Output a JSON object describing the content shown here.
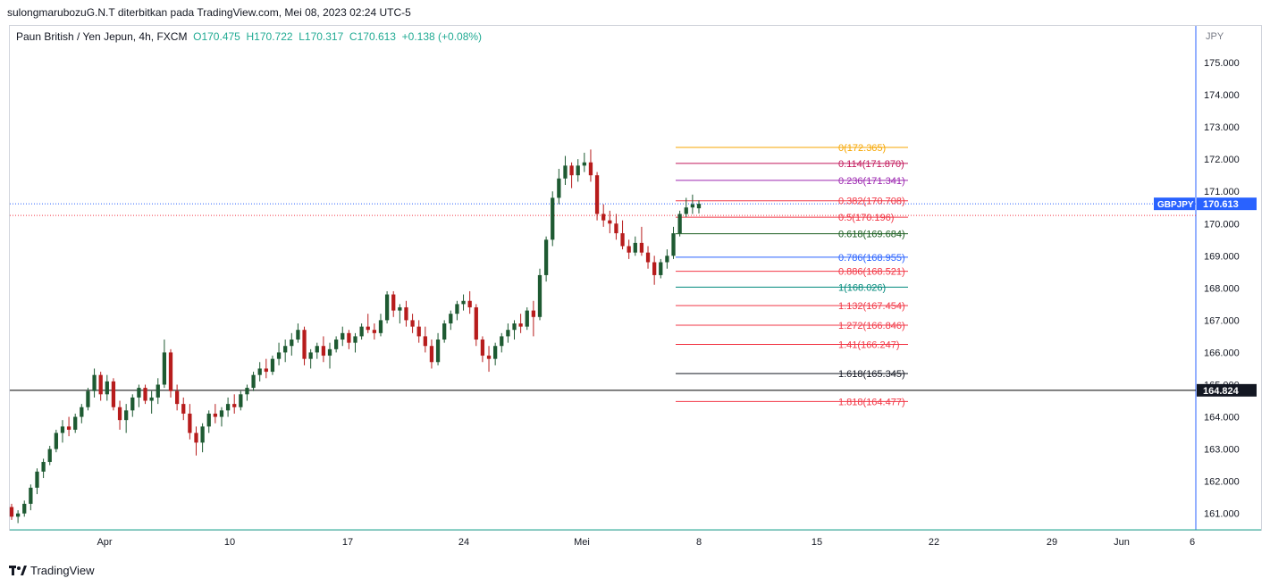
{
  "header": {
    "published": "sulongmarubozuG.N.T diterbitkan pada TradingView.com, Mei 08, 2023 02:24 UTC-5"
  },
  "symbol": {
    "name": "Paun British / Yen Jepun, 4h, FXCM",
    "ohlc": "O170.475  H170.722  L170.317  C170.613  +0.138 (+0.08%)"
  },
  "footer": {
    "brand": "TradingView"
  },
  "chart_data": {
    "type": "candlestick",
    "currency": "JPY",
    "price_axis": {
      "ticks": [
        "175.000",
        "174.000",
        "173.000",
        "172.000",
        "171.000",
        "170.000",
        "169.000",
        "168.000",
        "167.000",
        "166.000",
        "165.000",
        "164.000",
        "163.000",
        "162.000",
        "161.000"
      ],
      "range": [
        160.55,
        176.15
      ]
    },
    "time_axis": {
      "labels": [
        "Apr",
        "10",
        "17",
        "24",
        "Mei",
        "8",
        "15",
        "22",
        "29",
        "Jun",
        "6"
      ]
    },
    "current_price": {
      "symbol": "GBPJPY",
      "value": "170.613",
      "color": "#2962ff"
    },
    "horizontal_line": {
      "value": "164.824",
      "color": "#000000"
    },
    "fibonacci": [
      {
        "label": "0(172.365)",
        "value": 172.365,
        "color": "#f7a600"
      },
      {
        "label": "0.114(171.870)",
        "value": 171.87,
        "color": "#c2185b"
      },
      {
        "label": "0.236(171.341)",
        "value": 171.341,
        "color": "#9c27b0"
      },
      {
        "label": "0.382(170.708)",
        "value": 170.708,
        "color": "#f23645"
      },
      {
        "label": "0.5(170.196)",
        "value": 170.196,
        "color": "#f23645"
      },
      {
        "label": "0.618(169.684)",
        "value": 169.684,
        "color": "#1b5e20"
      },
      {
        "label": "0.786(168.955)",
        "value": 168.955,
        "color": "#2962ff"
      },
      {
        "label": "0.886(168.521)",
        "value": 168.521,
        "color": "#f23645"
      },
      {
        "label": "1(168.026)",
        "value": 168.026,
        "color": "#00897b"
      },
      {
        "label": "1.132(167.454)",
        "value": 167.454,
        "color": "#f23645"
      },
      {
        "label": "1.272(166.846)",
        "value": 166.846,
        "color": "#f23645"
      },
      {
        "label": "1.41(166.247)",
        "value": 166.247,
        "color": "#f23645"
      },
      {
        "label": "1.618(165.345)",
        "value": 165.345,
        "color": "#131722"
      },
      {
        "label": "1.818(164.477)",
        "value": 164.477,
        "color": "#f23645"
      }
    ],
    "colors": {
      "up": "#1e5a32",
      "down": "#b71c1c"
    },
    "ohlc_series": [
      [
        161.2,
        161.3,
        160.8,
        160.9
      ],
      [
        160.9,
        161.1,
        160.7,
        161.0
      ],
      [
        161.0,
        161.4,
        160.9,
        161.3
      ],
      [
        161.3,
        161.9,
        161.1,
        161.8
      ],
      [
        161.8,
        162.4,
        161.6,
        162.3
      ],
      [
        162.3,
        162.7,
        162.1,
        162.6
      ],
      [
        162.6,
        163.1,
        162.5,
        163.0
      ],
      [
        163.0,
        163.6,
        162.9,
        163.5
      ],
      [
        163.5,
        163.9,
        163.2,
        163.7
      ],
      [
        163.7,
        164.0,
        163.4,
        163.6
      ],
      [
        163.6,
        164.1,
        163.5,
        164.0
      ],
      [
        164.0,
        164.4,
        163.8,
        164.3
      ],
      [
        164.3,
        164.9,
        164.2,
        164.8
      ],
      [
        164.8,
        165.5,
        164.6,
        165.3
      ],
      [
        165.3,
        165.4,
        164.5,
        164.7
      ],
      [
        164.7,
        165.3,
        164.5,
        165.1
      ],
      [
        165.1,
        165.2,
        164.2,
        164.3
      ],
      [
        164.3,
        164.5,
        163.6,
        163.9
      ],
      [
        163.9,
        164.4,
        163.5,
        164.2
      ],
      [
        164.2,
        164.7,
        164.0,
        164.6
      ],
      [
        164.6,
        165.0,
        164.3,
        164.9
      ],
      [
        164.9,
        165.0,
        164.4,
        164.5
      ],
      [
        164.5,
        164.8,
        164.1,
        164.6
      ],
      [
        164.6,
        165.2,
        164.4,
        165.0
      ],
      [
        165.0,
        166.4,
        164.9,
        166.0
      ],
      [
        166.0,
        166.1,
        164.6,
        164.8
      ],
      [
        164.8,
        165.0,
        164.2,
        164.4
      ],
      [
        164.4,
        164.6,
        163.9,
        164.1
      ],
      [
        164.1,
        164.4,
        163.3,
        163.5
      ],
      [
        163.5,
        163.7,
        162.8,
        163.2
      ],
      [
        163.2,
        163.8,
        162.9,
        163.7
      ],
      [
        163.7,
        164.2,
        163.5,
        164.1
      ],
      [
        164.1,
        164.4,
        163.8,
        164.0
      ],
      [
        164.0,
        164.3,
        163.7,
        164.2
      ],
      [
        164.2,
        164.6,
        164.0,
        164.4
      ],
      [
        164.4,
        164.7,
        164.1,
        164.3
      ],
      [
        164.3,
        164.8,
        164.2,
        164.7
      ],
      [
        164.7,
        165.0,
        164.5,
        164.9
      ],
      [
        164.9,
        165.4,
        164.8,
        165.3
      ],
      [
        165.3,
        165.7,
        165.1,
        165.5
      ],
      [
        165.5,
        165.8,
        165.2,
        165.4
      ],
      [
        165.4,
        165.9,
        165.3,
        165.8
      ],
      [
        165.8,
        166.3,
        165.6,
        166.0
      ],
      [
        166.0,
        166.4,
        165.7,
        166.2
      ],
      [
        166.2,
        166.6,
        165.9,
        166.4
      ],
      [
        166.4,
        166.9,
        166.3,
        166.7
      ],
      [
        166.7,
        166.8,
        165.6,
        165.8
      ],
      [
        165.8,
        166.1,
        165.5,
        166.0
      ],
      [
        166.0,
        166.3,
        165.8,
        166.2
      ],
      [
        166.2,
        166.5,
        165.7,
        165.9
      ],
      [
        165.9,
        166.3,
        165.5,
        166.1
      ],
      [
        166.1,
        166.5,
        166.0,
        166.4
      ],
      [
        166.4,
        166.8,
        166.2,
        166.6
      ],
      [
        166.6,
        166.7,
        166.1,
        166.3
      ],
      [
        166.3,
        166.6,
        166.0,
        166.5
      ],
      [
        166.5,
        166.9,
        166.4,
        166.8
      ],
      [
        166.8,
        167.2,
        166.6,
        166.7
      ],
      [
        166.7,
        166.9,
        166.4,
        166.6
      ],
      [
        166.6,
        167.2,
        166.5,
        167.0
      ],
      [
        167.0,
        167.9,
        166.9,
        167.8
      ],
      [
        167.8,
        167.9,
        167.1,
        167.3
      ],
      [
        167.3,
        167.5,
        166.9,
        167.4
      ],
      [
        167.4,
        167.6,
        166.8,
        167.0
      ],
      [
        167.0,
        167.2,
        166.6,
        166.8
      ],
      [
        166.8,
        167.0,
        166.3,
        166.5
      ],
      [
        166.5,
        166.8,
        166.0,
        166.2
      ],
      [
        166.2,
        166.4,
        165.5,
        165.7
      ],
      [
        165.7,
        166.6,
        165.6,
        166.4
      ],
      [
        166.4,
        167.0,
        166.3,
        166.9
      ],
      [
        166.9,
        167.3,
        166.7,
        167.2
      ],
      [
        167.2,
        167.6,
        167.0,
        167.5
      ],
      [
        167.5,
        167.8,
        167.3,
        167.6
      ],
      [
        167.6,
        167.9,
        167.2,
        167.4
      ],
      [
        167.4,
        167.5,
        166.2,
        166.4
      ],
      [
        166.4,
        166.5,
        165.7,
        165.9
      ],
      [
        165.9,
        166.2,
        165.4,
        165.8
      ],
      [
        165.8,
        166.3,
        165.6,
        166.2
      ],
      [
        166.2,
        166.6,
        166.0,
        166.5
      ],
      [
        166.5,
        166.9,
        166.3,
        166.7
      ],
      [
        166.7,
        167.0,
        166.4,
        166.9
      ],
      [
        166.9,
        167.2,
        166.6,
        166.8
      ],
      [
        166.8,
        167.4,
        166.7,
        167.3
      ],
      [
        167.3,
        167.6,
        166.5,
        167.1
      ],
      [
        167.1,
        168.6,
        167.0,
        168.4
      ],
      [
        168.4,
        169.6,
        168.2,
        169.5
      ],
      [
        169.5,
        171.0,
        169.3,
        170.8
      ],
      [
        170.8,
        171.7,
        170.6,
        171.4
      ],
      [
        171.4,
        172.1,
        171.2,
        171.8
      ],
      [
        171.8,
        171.9,
        171.1,
        171.5
      ],
      [
        171.5,
        172.0,
        171.3,
        171.8
      ],
      [
        171.8,
        172.2,
        171.6,
        171.9
      ],
      [
        171.9,
        172.3,
        171.3,
        171.5
      ],
      [
        171.5,
        171.6,
        170.1,
        170.3
      ],
      [
        170.3,
        170.6,
        169.9,
        170.1
      ],
      [
        170.1,
        170.4,
        169.7,
        170.0
      ],
      [
        170.0,
        170.3,
        169.5,
        169.7
      ],
      [
        169.7,
        170.1,
        169.2,
        169.3
      ],
      [
        169.3,
        169.5,
        168.9,
        169.1
      ],
      [
        169.1,
        169.6,
        169.0,
        169.4
      ],
      [
        169.4,
        169.9,
        169.0,
        169.1
      ],
      [
        169.1,
        169.3,
        168.6,
        168.8
      ],
      [
        168.8,
        169.0,
        168.1,
        168.4
      ],
      [
        168.4,
        168.9,
        168.3,
        168.8
      ],
      [
        168.8,
        169.2,
        168.6,
        169.0
      ],
      [
        169.0,
        169.9,
        168.9,
        169.7
      ],
      [
        169.7,
        170.4,
        169.6,
        170.3
      ],
      [
        170.3,
        170.8,
        170.2,
        170.5
      ],
      [
        170.5,
        170.9,
        170.3,
        170.6
      ],
      [
        170.475,
        170.722,
        170.317,
        170.613
      ]
    ]
  }
}
